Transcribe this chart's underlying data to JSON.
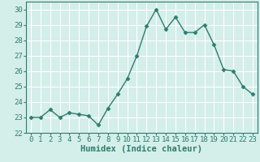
{
  "x": [
    0,
    1,
    2,
    3,
    4,
    5,
    6,
    7,
    8,
    9,
    10,
    11,
    12,
    13,
    14,
    15,
    16,
    17,
    18,
    19,
    20,
    21,
    22,
    23
  ],
  "y": [
    23.0,
    23.0,
    23.5,
    23.0,
    23.3,
    23.2,
    23.1,
    22.5,
    23.6,
    24.5,
    25.5,
    27.0,
    28.9,
    30.0,
    28.7,
    29.5,
    28.5,
    28.5,
    29.0,
    27.7,
    26.1,
    26.0,
    25.0,
    24.5
  ],
  "line_color": "#2e7d6e",
  "marker": "D",
  "marker_size": 2.5,
  "bg_color": "#d4eeea",
  "grid_color": "#ffffff",
  "xlabel": "Humidex (Indice chaleur)",
  "ylabel": "",
  "xlim": [
    -0.5,
    23.5
  ],
  "ylim": [
    22,
    30.5
  ],
  "yticks": [
    22,
    23,
    24,
    25,
    26,
    27,
    28,
    29,
    30
  ],
  "xticks": [
    0,
    1,
    2,
    3,
    4,
    5,
    6,
    7,
    8,
    9,
    10,
    11,
    12,
    13,
    14,
    15,
    16,
    17,
    18,
    19,
    20,
    21,
    22,
    23
  ],
  "xlabel_fontsize": 7.5,
  "tick_fontsize": 6.5
}
